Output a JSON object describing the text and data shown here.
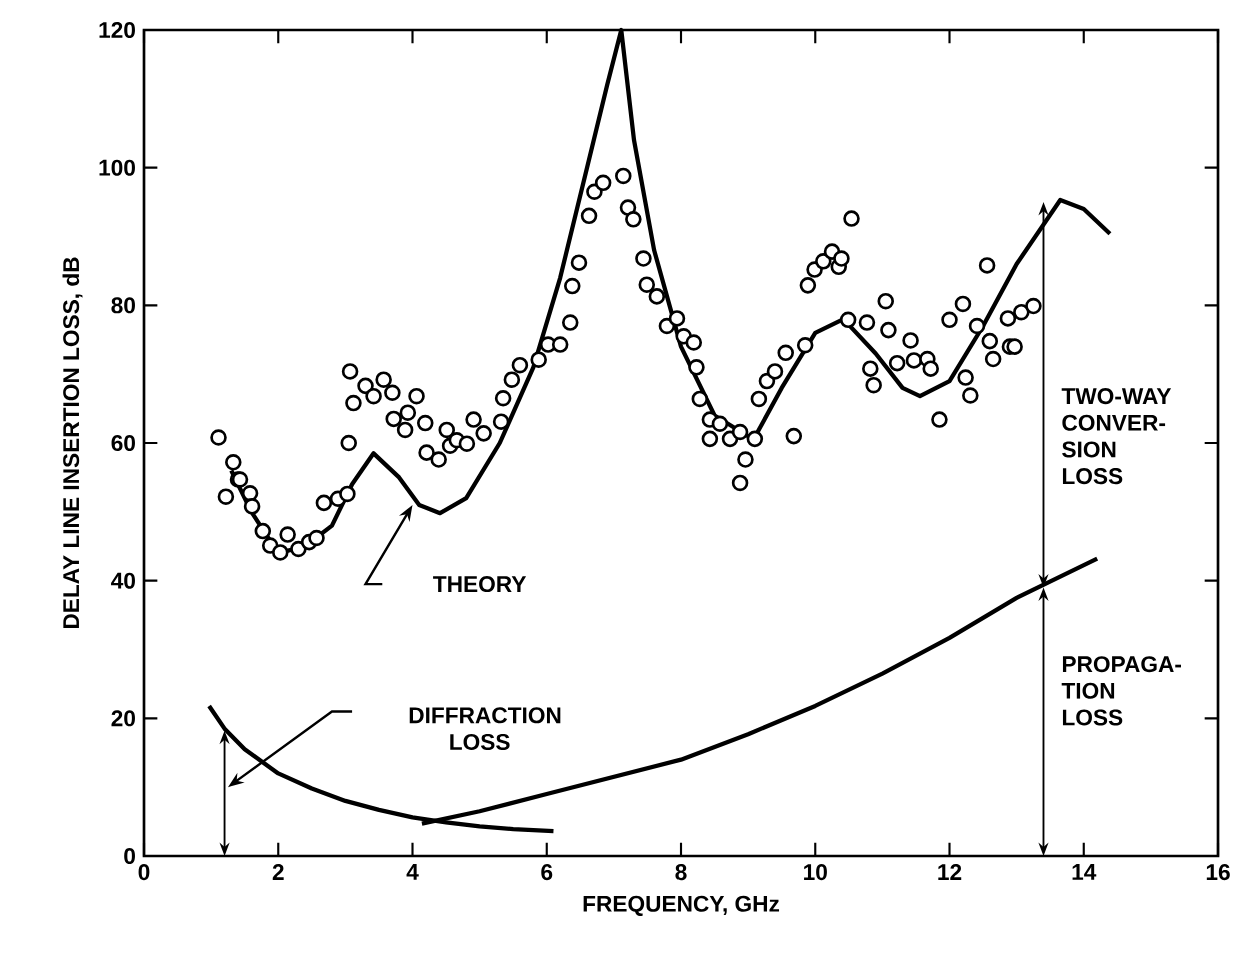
{
  "chart_data": {
    "type": "line",
    "xlabel": "FREQUENCY, GHz",
    "ylabel": "DELAY LINE INSERTION LOSS, dB",
    "xlim": [
      0,
      16
    ],
    "ylim": [
      0,
      120
    ],
    "xticks": [
      0,
      2,
      4,
      6,
      8,
      10,
      12,
      14,
      16
    ],
    "yticks": [
      0,
      20,
      40,
      60,
      80,
      100,
      120
    ],
    "grid": false,
    "series": [
      {
        "color": "#000000",
        "x": [
          1.3,
          1.6,
          2.0,
          2.4,
          2.8,
          3.1,
          3.42,
          3.8,
          4.1,
          4.41,
          4.8,
          5.3,
          5.8,
          6.2,
          6.6,
          6.9,
          7.11,
          7.3,
          7.6,
          8.0,
          8.5,
          9.08,
          9.5,
          10.0,
          10.42,
          10.9,
          11.3,
          11.56,
          12.0,
          12.5,
          13.0,
          13.65,
          14.0,
          14.39
        ],
        "values": [
          56,
          50,
          44,
          45,
          48,
          54,
          58.5,
          55,
          51,
          49.8,
          52,
          60,
          71,
          84,
          100,
          112,
          120,
          104,
          88,
          74,
          64,
          60.5,
          68,
          76,
          78,
          73,
          68,
          66.8,
          69,
          77,
          86,
          95.3,
          94,
          90.4
        ]
      },
      {
        "type": "scatter",
        "marker": "circle",
        "color": "#000000",
        "x": [
          1.11,
          1.22,
          1.33,
          1.4,
          1.43,
          1.58,
          1.61,
          1.77,
          1.88,
          2.03,
          2.14,
          2.3,
          2.46,
          2.57,
          2.68,
          2.89,
          3.03,
          3.05,
          3.07,
          3.12,
          3.3,
          3.42,
          3.57,
          3.7,
          3.72,
          3.89,
          3.93,
          4.06,
          4.19,
          4.21,
          4.39,
          4.51,
          4.56,
          4.66,
          4.81,
          4.91,
          5.06,
          5.32,
          5.35,
          5.48,
          5.6,
          5.88,
          6.02,
          6.2,
          6.35,
          6.38,
          6.48,
          6.63,
          6.71,
          6.84,
          7.14,
          7.21,
          7.29,
          7.44,
          7.49,
          7.64,
          7.79,
          7.94,
          8.04,
          8.19,
          8.23,
          8.28,
          8.43,
          8.43,
          8.58,
          8.73,
          8.88,
          8.96,
          8.88,
          9.1,
          9.16,
          9.28,
          9.4,
          9.56,
          9.68,
          9.85,
          9.89,
          9.99,
          10.12,
          10.25,
          10.35,
          10.39,
          10.54,
          10.49,
          10.77,
          10.82,
          10.87,
          11.05,
          11.09,
          11.22,
          11.42,
          11.47,
          11.67,
          11.72,
          11.85,
          12.0,
          12.2,
          12.24,
          12.31,
          12.41,
          12.56,
          12.6,
          12.65,
          12.87,
          12.9,
          12.97,
          13.07,
          13.25
        ],
        "values": [
          60.8,
          52.2,
          57.2,
          54.7,
          54.7,
          52.7,
          50.8,
          47.2,
          45.1,
          44.1,
          46.7,
          44.6,
          45.6,
          46.2,
          51.3,
          51.9,
          52.6,
          60.0,
          70.4,
          65.8,
          68.3,
          66.8,
          69.2,
          67.3,
          63.5,
          61.9,
          64.4,
          66.8,
          62.9,
          58.6,
          57.6,
          61.9,
          59.6,
          60.4,
          59.9,
          63.4,
          61.4,
          63.1,
          66.5,
          69.2,
          71.3,
          72.1,
          74.3,
          74.3,
          77.5,
          82.8,
          86.2,
          93.0,
          96.5,
          97.8,
          98.8,
          94.2,
          92.5,
          86.8,
          83.0,
          81.3,
          77.0,
          78.1,
          75.5,
          74.6,
          71.0,
          66.4,
          63.4,
          60.6,
          62.8,
          60.6,
          61.6,
          57.6,
          54.2,
          60.6,
          66.4,
          69.0,
          70.4,
          73.1,
          61.0,
          74.2,
          82.9,
          85.2,
          86.4,
          87.8,
          85.6,
          86.8,
          92.6,
          77.9,
          77.5,
          70.8,
          68.4,
          80.6,
          76.4,
          71.6,
          74.9,
          72.0,
          72.2,
          70.8,
          63.4,
          77.9,
          80.2,
          69.5,
          66.9,
          77.0,
          85.8,
          74.8,
          72.2,
          78.1,
          74.0,
          74.0,
          79.0,
          79.9
        ]
      },
      {
        "color": "#000000",
        "x": [
          0.97,
          1.2,
          1.5,
          2.0,
          2.5,
          3.0,
          3.5,
          4.0,
          4.5,
          5.0,
          5.5,
          6.1
        ],
        "values": [
          21.8,
          18.5,
          15.5,
          12,
          9.8,
          8,
          6.7,
          5.6,
          4.9,
          4.3,
          3.9,
          3.6
        ]
      },
      {
        "color": "#000000",
        "x": [
          4.14,
          5,
          6,
          7,
          8,
          9,
          10,
          11,
          12,
          13,
          14.2
        ],
        "values": [
          4.7,
          6.5,
          9,
          11.5,
          14,
          17.7,
          21.8,
          26.5,
          31.7,
          37.5,
          43.2
        ]
      }
    ],
    "annotations": [
      "THEORY",
      "DIFFRACTION LOSS",
      "TWO-WAY CONVER-SION LOSS",
      "PROPAGA-TION LOSS"
    ]
  }
}
